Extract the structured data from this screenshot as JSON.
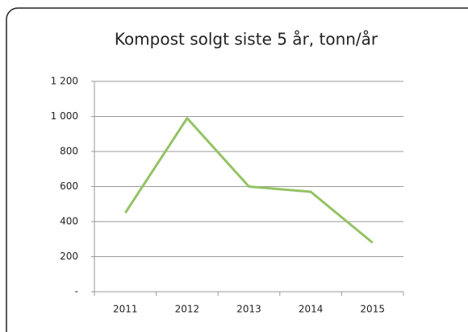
{
  "chart_data": {
    "type": "line",
    "title": "Kompost solgt siste 5 år, tonn/år",
    "categories": [
      "2011",
      "2012",
      "2013",
      "2014",
      "2015"
    ],
    "values": [
      450,
      990,
      600,
      570,
      280
    ],
    "color": "#93c363",
    "ylim": [
      0,
      1200
    ],
    "yticks": [
      {
        "value": 0,
        "label": "-"
      },
      200,
      400,
      600,
      800,
      {
        "value": 1000,
        "label": "1 000"
      },
      {
        "value": 1200,
        "label": "1 200"
      }
    ],
    "grid": true
  }
}
